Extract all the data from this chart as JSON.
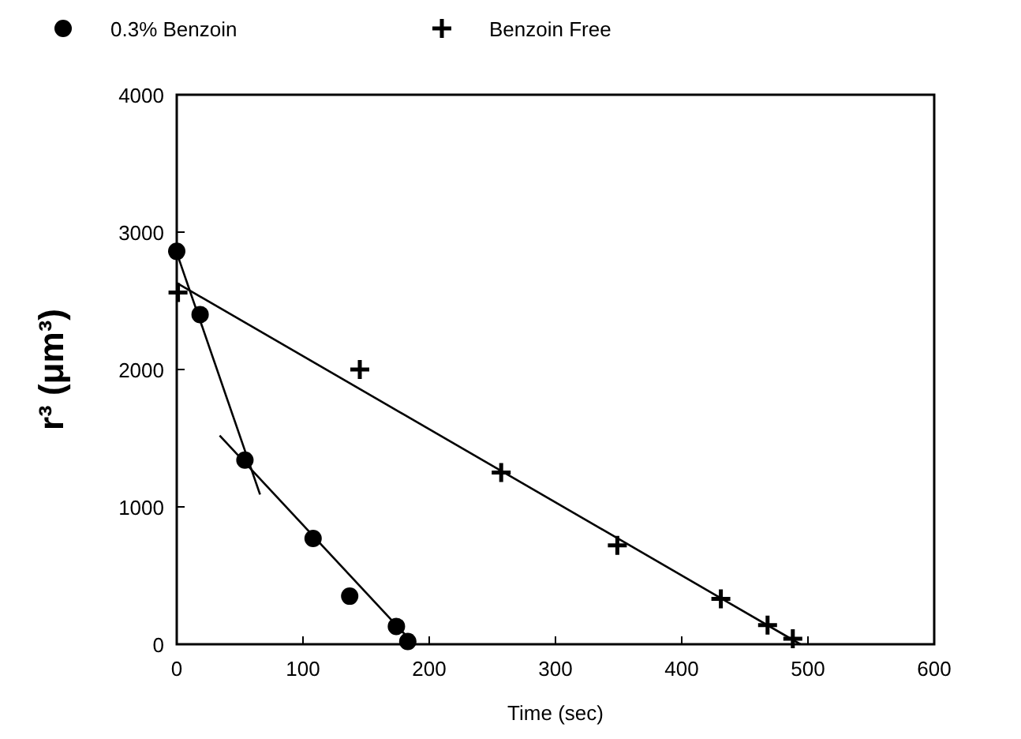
{
  "chart_data": {
    "type": "scatter",
    "xlabel": "Time (sec)",
    "ylabel": "r³ (μm³)",
    "xlim": [
      0,
      600
    ],
    "xticks": [
      0,
      100,
      200,
      300,
      400,
      500,
      600
    ],
    "ylim": [
      0,
      4000
    ],
    "yticks": [
      0,
      1000,
      2000,
      3000,
      4000
    ],
    "grid": false,
    "legend": "top",
    "series": [
      {
        "name": "0.3% Benzoin",
        "color": "#000000",
        "marker": "circle",
        "x": [
          0,
          18.5,
          54,
          108,
          137,
          174,
          183
        ],
        "values": [
          2860,
          2400,
          1340,
          770,
          350,
          130,
          20
        ]
      },
      {
        "name": "Benzoin Free",
        "color": "#000000",
        "marker": "cross",
        "x": [
          1,
          145,
          257,
          349,
          431,
          468,
          488
        ],
        "values": [
          2560,
          2000,
          1250,
          720,
          330,
          140,
          40
        ]
      },
      {
        "type": "line",
        "color": "#000000",
        "marker": "none",
        "x": [
          0,
          66
        ],
        "values": [
          2850,
          1090
        ]
      },
      {
        "type": "line",
        "color": "#000000",
        "marker": "none",
        "x": [
          34,
          188
        ],
        "values": [
          1520,
          0
        ]
      },
      {
        "type": "line",
        "color": "#000000",
        "marker": "none",
        "x": [
          0,
          494
        ],
        "values": [
          2630,
          0
        ]
      }
    ]
  }
}
